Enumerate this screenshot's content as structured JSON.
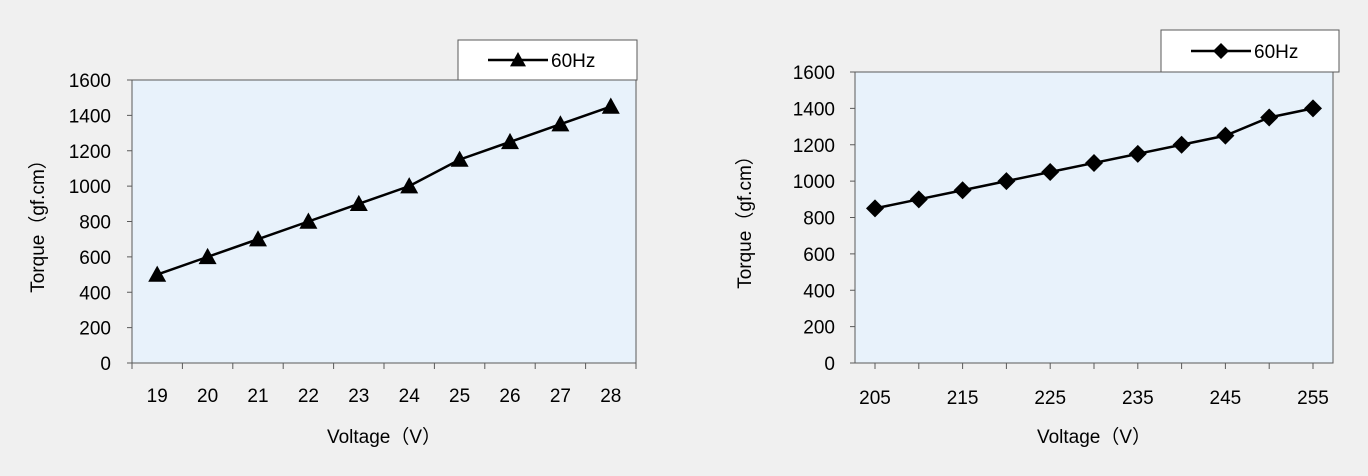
{
  "colors": {
    "background": "#f0f0f0",
    "panel": "#e8f2fb",
    "frame": "#5a5a5a",
    "series": "#000000"
  },
  "chart_data": [
    {
      "type": "line",
      "marker": "triangle",
      "legend_position": "top-right",
      "xlabel": "Voltage（V）",
      "ylabel": "Torque（gf.cm）",
      "x": [
        19,
        20,
        21,
        22,
        23,
        24,
        25,
        26,
        27,
        28
      ],
      "x_ticks": [
        "19",
        "20",
        "21",
        "22",
        "23",
        "24",
        "25",
        "26",
        "27",
        "28"
      ],
      "ylim": [
        0,
        1600
      ],
      "y_ticks": [
        "0",
        "200",
        "400",
        "600",
        "800",
        "1000",
        "1200",
        "1400",
        "1600"
      ],
      "series": [
        {
          "name": "60Hz",
          "values": [
            500,
            600,
            700,
            800,
            900,
            1000,
            1150,
            1250,
            1350,
            1450
          ]
        }
      ]
    },
    {
      "type": "line",
      "marker": "diamond",
      "legend_position": "top-right",
      "xlabel": "Voltage（V）",
      "ylabel": "Torque（gf.cm）",
      "x": [
        205,
        210,
        215,
        220,
        225,
        230,
        235,
        240,
        245,
        250,
        255
      ],
      "x_ticks": [
        "205",
        "215",
        "225",
        "235",
        "245",
        "255"
      ],
      "ylim": [
        0,
        1600
      ],
      "y_ticks": [
        "0",
        "200",
        "400",
        "600",
        "800",
        "1000",
        "1200",
        "1400",
        "1600"
      ],
      "series": [
        {
          "name": "60Hz",
          "values": [
            850,
            900,
            950,
            1000,
            1050,
            1100,
            1150,
            1200,
            1250,
            1350,
            1400
          ]
        }
      ]
    }
  ]
}
